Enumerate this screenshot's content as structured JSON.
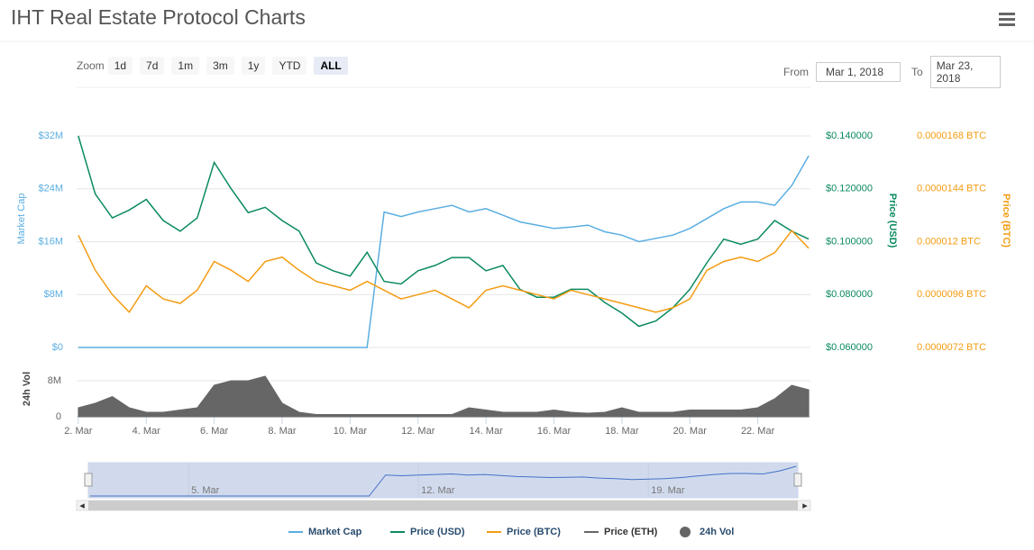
{
  "toolbar": {
    "zoom_label": "Zoom",
    "buttons": [
      "1d",
      "7d",
      "1m",
      "3m",
      "1y",
      "YTD",
      "ALL"
    ],
    "selected": "ALL",
    "from_label": "From",
    "from": "Mar 1, 2018",
    "to_label": "To",
    "to": "Mar 23, 2018"
  },
  "chart_data": {
    "type": "line",
    "title": "IHT Real Estate Protocol Charts",
    "x": [
      2,
      2.5,
      3,
      3.5,
      4,
      4.5,
      5,
      5.5,
      6,
      6.5,
      7,
      7.5,
      8,
      8.5,
      9,
      9.5,
      10,
      10.5,
      11,
      11.5,
      12,
      12.5,
      13,
      13.5,
      14,
      14.5,
      15,
      15.5,
      16,
      16.5,
      17,
      17.5,
      18,
      18.5,
      19,
      19.5,
      20,
      20.5,
      21,
      21.5,
      22,
      22.5,
      23,
      23.5
    ],
    "xlim": [
      1.95,
      23.55
    ],
    "xticks": [
      {
        "value": 2,
        "label": "2. Mar"
      },
      {
        "value": 4,
        "label": "4. Mar"
      },
      {
        "value": 6,
        "label": "6. Mar"
      },
      {
        "value": 8,
        "label": "8. Mar"
      },
      {
        "value": 10,
        "label": "10. Mar"
      },
      {
        "value": 12,
        "label": "12. Mar"
      },
      {
        "value": 14,
        "label": "14. Mar"
      },
      {
        "value": 16,
        "label": "16. Mar"
      },
      {
        "value": 18,
        "label": "18. Mar"
      },
      {
        "value": 20,
        "label": "20. Mar"
      },
      {
        "value": 22,
        "label": "22. Mar"
      }
    ],
    "navigator_xticks": [
      {
        "value": 5,
        "label": "5. Mar"
      },
      {
        "value": 12,
        "label": "12. Mar"
      },
      {
        "value": 19,
        "label": "19. Mar"
      }
    ],
    "ylabel": "Market Cap",
    "ylim": [
      0,
      32000000
    ],
    "yticks": [
      {
        "value": 0,
        "label": "$0"
      },
      {
        "value": 8000000,
        "label": "$8M"
      },
      {
        "value": 16000000,
        "label": "$16M"
      },
      {
        "value": 24000000,
        "label": "$24M"
      },
      {
        "value": 32000000,
        "label": "$32M"
      }
    ],
    "y2label": "Price (USD)",
    "y2lim": [
      0.06,
      0.14
    ],
    "y2ticks": [
      {
        "value": 0.06,
        "label": "$0.060000"
      },
      {
        "value": 0.08,
        "label": "$0.080000"
      },
      {
        "value": 0.1,
        "label": "$0.100000"
      },
      {
        "value": 0.12,
        "label": "$0.120000"
      },
      {
        "value": 0.14,
        "label": "$0.140000"
      }
    ],
    "y3label": "Price (BTC)",
    "y3lim": [
      7.2e-06,
      1.68e-05
    ],
    "y3ticks": [
      {
        "value": 7.2e-06,
        "label": "0.0000072 BTC"
      },
      {
        "value": 9.6e-06,
        "label": "0.0000096 BTC"
      },
      {
        "value": 1.2e-05,
        "label": "0.000012 BTC"
      },
      {
        "value": 1.44e-05,
        "label": "0.0000144 BTC"
      },
      {
        "value": 1.68e-05,
        "label": "0.0000168 BTC"
      }
    ],
    "vol_label": "24h Vol",
    "vol_ylim": [
      0,
      12000000
    ],
    "vol_yticks": [
      0,
      {
        "value": 8000000,
        "label": "8M"
      }
    ],
    "grid": true,
    "series": [
      {
        "name": "Market Cap",
        "color": "#5aaee2",
        "axis": "y",
        "values": [
          0,
          0,
          0,
          0,
          0,
          0,
          0,
          0,
          0,
          0,
          0,
          0,
          0,
          0,
          0,
          0,
          0,
          0,
          20500000,
          19800000,
          20500000,
          21000000,
          21500000,
          20500000,
          21000000,
          20000000,
          19000000,
          18500000,
          18000000,
          18200000,
          18500000,
          17500000,
          17000000,
          16000000,
          16500000,
          17000000,
          18000000,
          19500000,
          21000000,
          22000000,
          22000000,
          21500000,
          24500000,
          29000000
        ]
      },
      {
        "name": "Price (USD)",
        "color": "#0b8a5f",
        "axis": "y2",
        "values": [
          0.14,
          0.118,
          0.109,
          0.112,
          0.116,
          0.108,
          0.104,
          0.109,
          0.13,
          0.12,
          0.111,
          0.113,
          0.108,
          0.104,
          0.092,
          0.089,
          0.087,
          0.096,
          0.085,
          0.084,
          0.089,
          0.091,
          0.094,
          0.094,
          0.089,
          0.091,
          0.082,
          0.079,
          0.079,
          0.082,
          0.082,
          0.077,
          0.073,
          0.068,
          0.07,
          0.075,
          0.082,
          0.092,
          0.101,
          0.099,
          0.101,
          0.108,
          0.104,
          0.101
        ]
      },
      {
        "name": "Price (BTC)",
        "color": "#f39c12",
        "axis": "y3",
        "values": [
          1.23e-05,
          1.07e-05,
          9.6e-06,
          8.8e-06,
          1e-05,
          9.4e-06,
          9.2e-06,
          9.8e-06,
          1.11e-05,
          1.07e-05,
          1.02e-05,
          1.11e-05,
          1.13e-05,
          1.07e-05,
          1.02e-05,
          1e-05,
          9.8e-06,
          1.02e-05,
          9.8e-06,
          9.4e-06,
          9.6e-06,
          9.8e-06,
          9.4e-06,
          9e-06,
          9.8e-06,
          1e-05,
          9.8e-06,
          9.6e-06,
          9.4e-06,
          9.8e-06,
          9.6e-06,
          9.4e-06,
          9.2e-06,
          9e-06,
          8.8e-06,
          9e-06,
          9.4e-06,
          1.07e-05,
          1.11e-05,
          1.13e-05,
          1.11e-05,
          1.15e-05,
          1.25e-05,
          1.17e-05
        ]
      },
      {
        "name": "24h Vol",
        "color": "#666666",
        "axis": "vol",
        "values": [
          2000000,
          3000000,
          4500000,
          2000000,
          1000000,
          1000000,
          1500000,
          2000000,
          7000000,
          8000000,
          8000000,
          9000000,
          3000000,
          1000000,
          500000,
          500000,
          500000,
          500000,
          500000,
          500000,
          500000,
          500000,
          500000,
          2000000,
          1500000,
          1000000,
          1000000,
          1000000,
          1500000,
          1000000,
          800000,
          1000000,
          2000000,
          1000000,
          1000000,
          1000000,
          1500000,
          1500000,
          1500000,
          1500000,
          2000000,
          4000000,
          7000000,
          6000000
        ]
      }
    ],
    "hidden_series": [
      {
        "name": "Price (ETH)",
        "color": "#666666"
      }
    ]
  }
}
